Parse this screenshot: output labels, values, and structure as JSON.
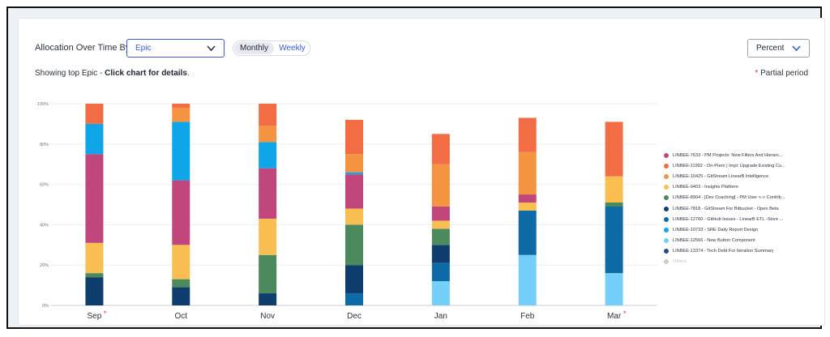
{
  "controls": {
    "allocation_label": "Allocation Over Time By",
    "group_by_value": "Epic",
    "period_options": [
      "Monthly",
      "Weekly"
    ],
    "active_period": "Monthly",
    "mode_value": "Percent"
  },
  "hint": {
    "prefix": "Showing top Epic - ",
    "bold": "Click chart for details",
    "suffix": "."
  },
  "partial_marker": "*",
  "partial_label": "Partial period",
  "chart_data": {
    "type": "bar",
    "stacked": true,
    "categories": [
      "Sep",
      "Oct",
      "Nov",
      "Dec",
      "Jan",
      "Feb",
      "Mar"
    ],
    "partial_categories": [
      "Sep",
      "Mar"
    ],
    "y_ticks": [
      "0%",
      "20%",
      "40%",
      "60%",
      "80%",
      "100%"
    ],
    "ylim": [
      0,
      100
    ],
    "grid": true,
    "legend_position": "right",
    "series": [
      {
        "name": "LINBEE-13374 - Tech Debt For Iteration Summary",
        "color": "#1d4e89",
        "values": [
          0,
          0,
          0,
          0,
          0,
          0,
          0
        ]
      },
      {
        "name": "LINBEE-12566 - New Button Component",
        "color": "#74d0fb",
        "values": [
          0,
          0,
          0,
          0,
          12,
          25,
          16
        ]
      },
      {
        "name": "LINBEE-10733 - SRE Daily Report Design",
        "color": "#0ea5e9",
        "values": [
          15,
          29,
          13,
          1,
          0,
          0,
          0
        ]
      },
      {
        "name": "LINBEE-12760 - GitHub Issues - LinearB ETL -Store ...",
        "color": "#0e6ba8",
        "values": [
          0,
          0,
          0,
          6,
          9,
          22,
          33
        ]
      },
      {
        "name": "LINBEE-7818 - GitStream For Bitbucket - Open Beta",
        "color": "#0f3d6e",
        "values": [
          14,
          9,
          6,
          14,
          9,
          0,
          0
        ]
      },
      {
        "name": "LINBEE-8904 - [Dev Coaching] - PM User <-> Contrib...",
        "color": "#4a8a5c",
        "values": [
          2,
          4,
          19,
          20,
          8,
          0,
          2
        ]
      },
      {
        "name": "LINBEE-9403 - Insights Platform",
        "color": "#f9bf52",
        "values": [
          15,
          17,
          18,
          8,
          4,
          4,
          13
        ]
      },
      {
        "name": "LINBEE-10425 - GitStream LinearB Intelligence",
        "color": "#f59440",
        "values": [
          0,
          7,
          8,
          9,
          21,
          21,
          0
        ]
      },
      {
        "name": "LINBEE-11992 - On-Prem | Impl: Upgrade Existing Cu...",
        "color": "#f36d44",
        "values": [
          10,
          2,
          11,
          17,
          15,
          17,
          27
        ]
      },
      {
        "name": "LINBEE-7633 - PM Projects: New Filters And Hierarc...",
        "color": "#c1467b",
        "values": [
          44,
          32,
          25,
          17,
          7,
          4,
          0
        ]
      },
      {
        "name": "Others",
        "color": "#c8ccd3",
        "values": [
          0,
          0,
          0,
          0,
          0,
          0,
          0
        ]
      }
    ],
    "stack_order_bottom_to_top": [
      [
        1,
        3,
        4,
        5,
        6,
        9,
        2,
        7,
        8,
        0,
        10
      ],
      [
        0,
        0
      ]
    ]
  }
}
